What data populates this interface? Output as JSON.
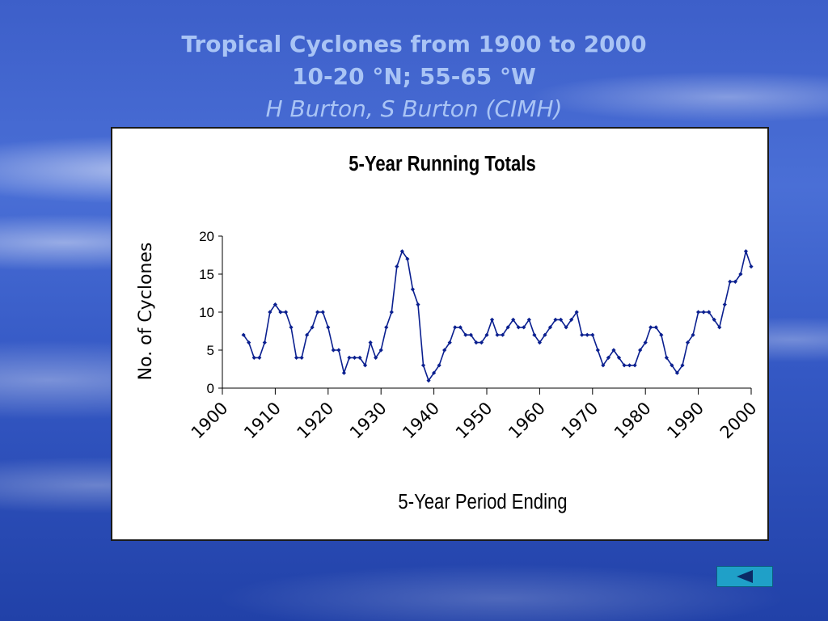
{
  "slide": {
    "title_line1": "Tropical Cyclones from 1900 to 2000",
    "title_line2": "10-20 °N; 55-65 °W",
    "authors": "H Burton, S Burton (CIMH)"
  },
  "navigation": {
    "back_icon": "left-triangle-icon"
  },
  "colors": {
    "series": "#0a1f8f",
    "title": "#a9c4f5",
    "back_button": "#1fa0c8"
  },
  "chart_data": {
    "type": "line",
    "title": "5-Year Running Totals",
    "xlabel": "5-Year Period Ending",
    "ylabel": "No. of Cyclones",
    "xlim": [
      1900,
      2000
    ],
    "ylim": [
      0,
      20
    ],
    "yticks": [
      0,
      5,
      10,
      15,
      20
    ],
    "xticks": [
      1900,
      1910,
      1920,
      1930,
      1940,
      1950,
      1960,
      1970,
      1980,
      1990,
      2000
    ],
    "grid": false,
    "legend": "none",
    "series": [
      {
        "x": [
          1904,
          1905,
          1906,
          1907,
          1908,
          1909,
          1910,
          1911,
          1912,
          1913,
          1914,
          1915,
          1916,
          1917,
          1918,
          1919,
          1920,
          1921,
          1922,
          1923,
          1924,
          1925,
          1926,
          1927,
          1928,
          1929,
          1930,
          1931,
          1932,
          1933,
          1934,
          1935,
          1936,
          1937,
          1938,
          1939,
          1940,
          1941,
          1942,
          1943,
          1944,
          1945,
          1946,
          1947,
          1948,
          1949,
          1950,
          1951,
          1952,
          1953,
          1954,
          1955,
          1956,
          1957,
          1958,
          1959,
          1960,
          1961,
          1962,
          1963,
          1964,
          1965,
          1966,
          1967,
          1968,
          1969,
          1970,
          1971,
          1972,
          1973,
          1974,
          1975,
          1976,
          1977,
          1978,
          1979,
          1980,
          1981,
          1982,
          1983,
          1984,
          1985,
          1986,
          1987,
          1988,
          1989,
          1990,
          1991,
          1992,
          1993,
          1994,
          1995,
          1996,
          1997,
          1998,
          1999,
          2000
        ],
        "values": [
          7,
          6,
          4,
          4,
          6,
          10,
          11,
          10,
          10,
          8,
          4,
          4,
          7,
          8,
          10,
          10,
          8,
          5,
          5,
          2,
          4,
          4,
          4,
          3,
          6,
          4,
          5,
          8,
          10,
          16,
          18,
          17,
          13,
          11,
          3,
          1,
          2,
          3,
          5,
          6,
          8,
          8,
          7,
          7,
          6,
          6,
          7,
          9,
          7,
          7,
          8,
          9,
          8,
          8,
          9,
          7,
          6,
          7,
          8,
          9,
          9,
          8,
          9,
          10,
          7,
          7,
          7,
          5,
          3,
          4,
          5,
          4,
          3,
          3,
          3,
          5,
          6,
          8,
          8,
          7,
          4,
          3,
          2,
          3,
          6,
          7,
          10,
          10,
          10,
          9,
          8,
          11,
          14,
          14,
          15,
          18,
          16
        ]
      }
    ]
  }
}
